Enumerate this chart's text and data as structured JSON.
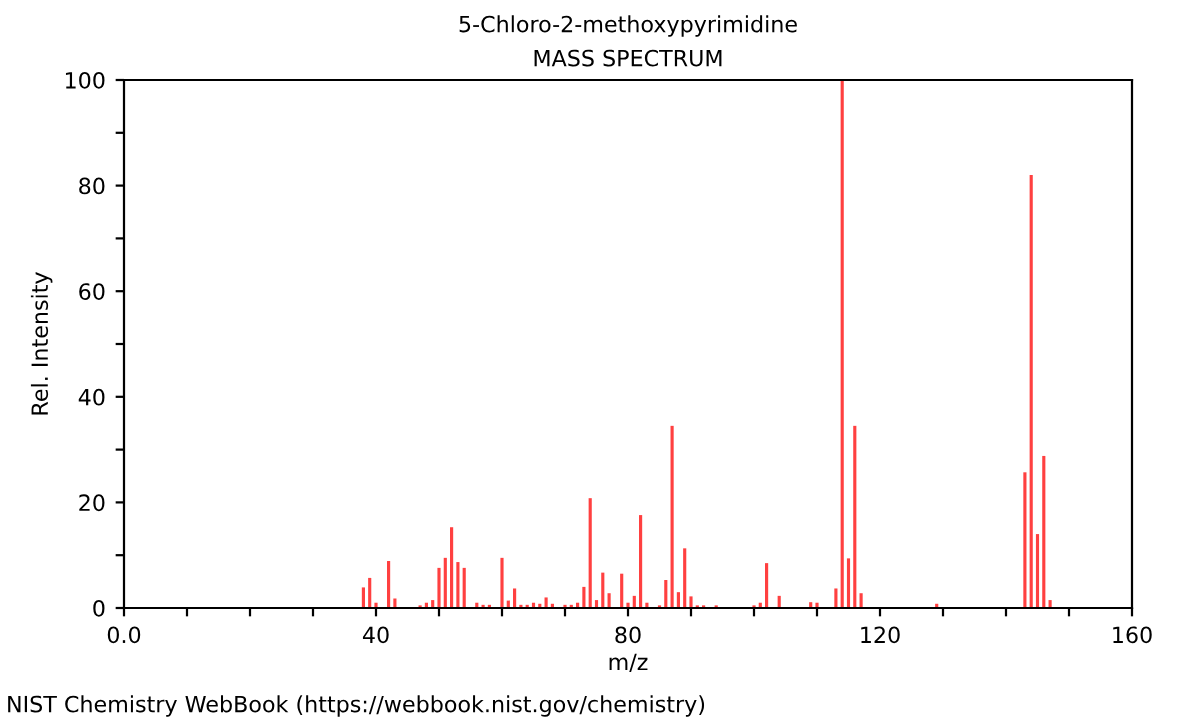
{
  "chart_data": {
    "type": "bar",
    "title": "5-Chloro-2-methoxypyrimidine",
    "subtitle": "MASS SPECTRUM",
    "xlabel": "m/z",
    "ylabel": "Rel. Intensity",
    "x": [
      38,
      39,
      40,
      42,
      43,
      47,
      48,
      49,
      50,
      51,
      52,
      53,
      54,
      56,
      57,
      58,
      60,
      61,
      62,
      63,
      64,
      65,
      66,
      67,
      68,
      70,
      71,
      72,
      73,
      74,
      75,
      76,
      77,
      79,
      80,
      81,
      82,
      83,
      85,
      86,
      87,
      88,
      89,
      90,
      91,
      92,
      94,
      100,
      101,
      102,
      104,
      109,
      110,
      113,
      114,
      115,
      116,
      117,
      129,
      143,
      144,
      145,
      146,
      147
    ],
    "series": [
      {
        "color": "#ff4040",
        "values": [
          3.9,
          5.7,
          1,
          8.9,
          1.8,
          0.5,
          1,
          1.5,
          7.6,
          9.5,
          15.3,
          8.7,
          7.6,
          1,
          0.6,
          0.6,
          9.5,
          1.4,
          3.7,
          0.6,
          0.6,
          1,
          0.8,
          2,
          0.8,
          0.6,
          0.6,
          1,
          4,
          20.8,
          1.5,
          6.7,
          2.8,
          6.5,
          1,
          2.3,
          17.6,
          1,
          0.5,
          5.3,
          34.5,
          3,
          11.3,
          2.2,
          0.5,
          0.5,
          0.5,
          0.5,
          1,
          8.5,
          2.3,
          1.1,
          1,
          3.7,
          100,
          9.4,
          34.5,
          2.8,
          0.8,
          25.7,
          82,
          14,
          28.8,
          1.5
        ]
      }
    ],
    "xlim": [
      0,
      160
    ],
    "ylim": [
      0,
      100
    ],
    "xticks": [
      {
        "value": 0,
        "label": "0.0"
      },
      {
        "value": 10,
        "label": null
      },
      {
        "value": 20,
        "label": null
      },
      {
        "value": 30,
        "label": null
      },
      40,
      {
        "value": 50,
        "label": null
      },
      {
        "value": 60,
        "label": null
      },
      {
        "value": 70,
        "label": null
      },
      80,
      {
        "value": 90,
        "label": null
      },
      {
        "value": 100,
        "label": null
      },
      {
        "value": 110,
        "label": null
      },
      120,
      {
        "value": 130,
        "label": null
      },
      {
        "value": 140,
        "label": null
      },
      {
        "value": 150,
        "label": null
      },
      160
    ],
    "yticks": [
      0,
      {
        "value": 10,
        "label": null
      },
      20,
      {
        "value": 30,
        "label": null
      },
      40,
      {
        "value": 50,
        "label": null
      },
      60,
      {
        "value": 70,
        "label": null
      },
      80,
      {
        "value": 90,
        "label": null
      },
      100
    ],
    "grid": false,
    "legend": false,
    "annotations": [
      "NIST Chemistry WebBook (https://webbook.nist.gov/chemistry)"
    ]
  }
}
